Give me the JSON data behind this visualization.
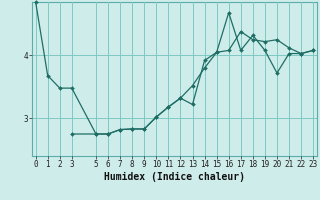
{
  "xlabel": "Humidex (Indice chaleur)",
  "bg_color": "#ceecea",
  "line_color": "#1e6e65",
  "grid_color": "#7ec8c3",
  "line1_x": [
    0,
    1,
    2,
    3,
    5,
    6,
    7,
    8,
    9,
    10,
    11,
    12,
    13,
    14,
    15,
    16,
    17,
    18,
    19,
    20,
    21,
    22,
    23
  ],
  "line1_y": [
    4.85,
    3.68,
    3.48,
    3.48,
    2.75,
    2.75,
    2.82,
    2.83,
    2.83,
    3.02,
    3.18,
    3.32,
    3.52,
    3.8,
    4.05,
    4.08,
    4.38,
    4.25,
    4.22,
    4.25,
    4.12,
    4.03,
    4.08
  ],
  "line2_x": [
    3,
    5,
    6,
    7,
    8,
    9,
    10,
    11,
    12,
    13,
    14,
    15,
    16,
    17,
    18,
    19,
    20,
    21,
    22,
    23
  ],
  "line2_y": [
    2.75,
    2.75,
    2.75,
    2.82,
    2.83,
    2.83,
    3.02,
    3.18,
    3.32,
    3.22,
    3.92,
    4.05,
    4.68,
    4.08,
    4.32,
    4.08,
    3.72,
    4.03,
    4.03,
    4.08
  ],
  "yticks": [
    3,
    4
  ],
  "xticks": [
    0,
    1,
    2,
    3,
    5,
    6,
    7,
    8,
    9,
    10,
    11,
    12,
    13,
    14,
    15,
    16,
    17,
    18,
    19,
    20,
    21,
    22,
    23
  ],
  "ylim": [
    2.4,
    4.85
  ],
  "xlim": [
    -0.3,
    23.3
  ],
  "xlabel_fontsize": 7,
  "tick_fontsize": 5.5,
  "marker_size": 2.0,
  "line_width": 0.9
}
